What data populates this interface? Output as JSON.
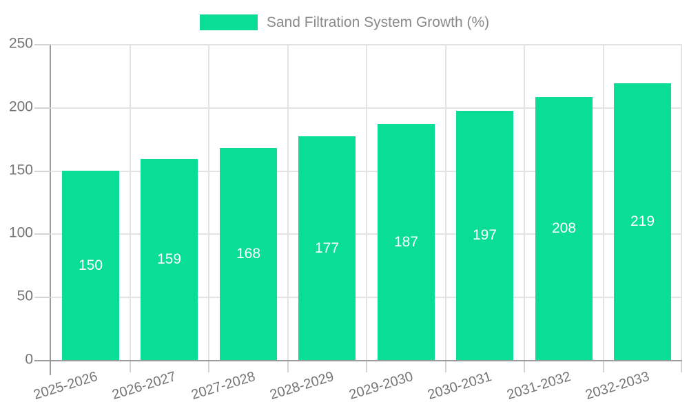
{
  "chart_data": {
    "type": "bar",
    "title": "Sand Filtration System Growth (%)",
    "legend": {
      "label": "Sand Filtration System Growth (%)",
      "position": "top-center"
    },
    "categories": [
      "2025-2026",
      "2026-2027",
      "2027-2028",
      "2028-2029",
      "2029-2030",
      "2030-2031",
      "2031-2032",
      "2032-2033"
    ],
    "values": [
      150,
      159,
      168,
      177,
      187,
      197,
      208,
      219
    ],
    "xlabel": "",
    "ylabel": "",
    "ylim": [
      0,
      250
    ],
    "yticks": [
      0,
      50,
      100,
      150,
      200,
      250
    ],
    "grid": "horizontal-and-vertical",
    "value_labels": "inside-center",
    "x_label_rotation_deg": -17,
    "colors": {
      "bar": "#0ade96",
      "value_label": "#ffffff",
      "axis_line": "#9b9b9b",
      "grid_line": "#e3e3e3",
      "tick_mark": "#d4d4d4",
      "axis_text": "#757575",
      "legend_text": "#8a8a8a",
      "background": "#ffffff"
    }
  }
}
